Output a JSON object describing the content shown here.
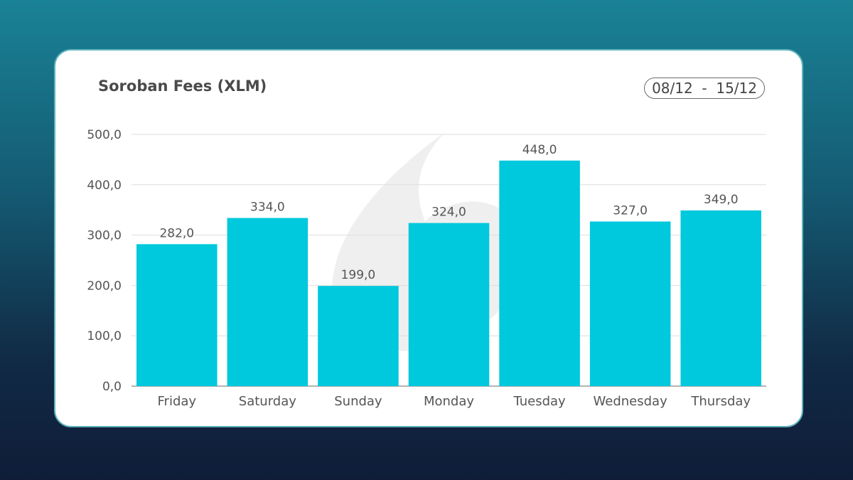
{
  "chart_data": {
    "type": "bar",
    "title": "Soroban Fees (XLM)",
    "date_range": "08/12  -  15/12",
    "categories": [
      "Friday",
      "Saturday",
      "Sunday",
      "Monday",
      "Tuesday",
      "Wednesday",
      "Thursday"
    ],
    "values": [
      282,
      334,
      199,
      324,
      448,
      327,
      349
    ],
    "data_labels": [
      "282,0",
      "334,0",
      "199,0",
      "324,0",
      "448,0",
      "327,0",
      "349,0"
    ],
    "y_ticks": [
      "0,0",
      "100,0",
      "200,0",
      "300,0",
      "400,0",
      "500,0"
    ],
    "ylim": [
      0,
      500
    ],
    "grid": true,
    "legend": "none",
    "bar_color": "#00c8dd"
  }
}
